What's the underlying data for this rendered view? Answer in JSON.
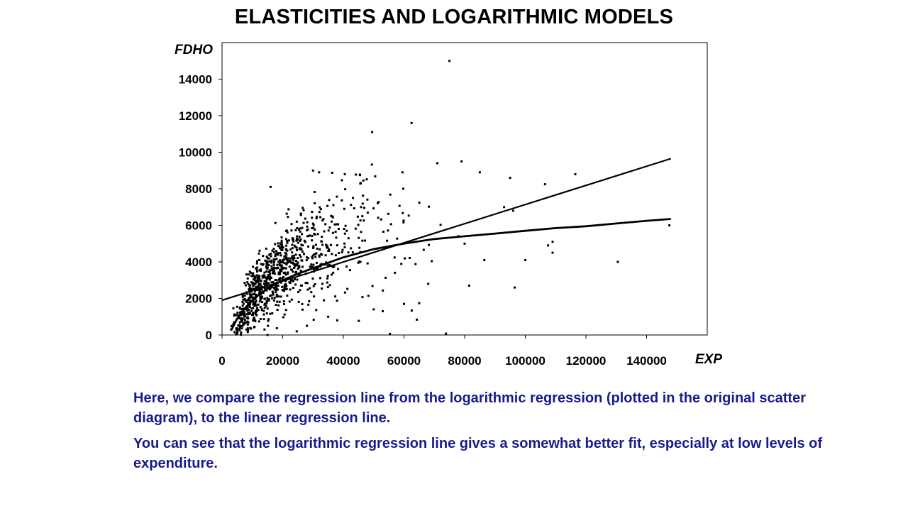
{
  "title": "ELASTICITIES AND LOGARITHMIC MODELS",
  "caption": {
    "paragraph_1": "Here, we compare the regression line from the logarithmic regression (plotted in the original scatter diagram), to the linear regression line.",
    "paragraph_2": "You can see that the logarithmic regression line gives a somewhat better fit, especially at low levels of expenditure."
  },
  "colors": {
    "title": "#000000",
    "caption": "#1a1a8c",
    "points": "#000000",
    "lines": "#000000"
  },
  "chart_data": {
    "type": "scatter",
    "xlabel": "EXP",
    "ylabel": "FDHO",
    "xlim": [
      0,
      160000
    ],
    "ylim": [
      0,
      16000
    ],
    "xticks": [
      "0",
      "20000",
      "40000",
      "60000",
      "80000",
      "100000",
      "120000",
      "140000"
    ],
    "yticks": [
      "0",
      "2000",
      "4000",
      "6000",
      "8000",
      "10000",
      "12000",
      "14000"
    ],
    "grid": false,
    "legend": "none",
    "highlighted_points": [
      {
        "x": 75000,
        "y": 15000
      },
      {
        "x": 62500,
        "y": 11600
      },
      {
        "x": 49500,
        "y": 11100
      },
      {
        "x": 71000,
        "y": 9400
      },
      {
        "x": 79000,
        "y": 9500
      },
      {
        "x": 85000,
        "y": 8900
      },
      {
        "x": 95000,
        "y": 8600
      },
      {
        "x": 106500,
        "y": 8250
      },
      {
        "x": 116500,
        "y": 8800
      },
      {
        "x": 93000,
        "y": 7000
      },
      {
        "x": 96000,
        "y": 6800
      },
      {
        "x": 30000,
        "y": 9000
      },
      {
        "x": 32000,
        "y": 8900
      },
      {
        "x": 40500,
        "y": 8800
      },
      {
        "x": 45500,
        "y": 8750
      },
      {
        "x": 59500,
        "y": 8900
      },
      {
        "x": 16000,
        "y": 8100
      },
      {
        "x": 147500,
        "y": 6000
      },
      {
        "x": 130500,
        "y": 4000
      },
      {
        "x": 100000,
        "y": 4100
      },
      {
        "x": 107500,
        "y": 4900
      },
      {
        "x": 109000,
        "y": 5100
      },
      {
        "x": 109000,
        "y": 4500
      },
      {
        "x": 96500,
        "y": 2600
      },
      {
        "x": 81500,
        "y": 2700
      },
      {
        "x": 86500,
        "y": 4100
      },
      {
        "x": 78000,
        "y": 5400
      },
      {
        "x": 80000,
        "y": 5000
      },
      {
        "x": 68000,
        "y": 2800
      },
      {
        "x": 60000,
        "y": 1700
      },
      {
        "x": 57000,
        "y": 3400
      },
      {
        "x": 50000,
        "y": 1400
      },
      {
        "x": 53000,
        "y": 1300
      },
      {
        "x": 38000,
        "y": 800
      },
      {
        "x": 35000,
        "y": 1000
      },
      {
        "x": 28000,
        "y": 500
      },
      {
        "x": 15000,
        "y": 0
      },
      {
        "x": 14000,
        "y": 300
      },
      {
        "x": 3000,
        "y": 300
      },
      {
        "x": 4000,
        "y": 700
      }
    ],
    "cluster": {
      "description_count": 900,
      "x_range": [
        3000,
        75000
      ],
      "x_mode": 15000
    },
    "series": [
      {
        "type": "line",
        "x": [
          0,
          148000
        ],
        "y": [
          1900,
          9650
        ]
      },
      {
        "type": "line",
        "x": [
          3000,
          5000,
          8000,
          12000,
          16000,
          20000,
          25000,
          30000,
          35000,
          40000,
          50000,
          60000,
          70000,
          80000,
          90000,
          100000,
          110000,
          120000,
          130000,
          140000,
          148000
        ],
        "y": [
          250,
          900,
          1550,
          2200,
          2650,
          3000,
          3350,
          3650,
          3950,
          4250,
          4700,
          5000,
          5250,
          5400,
          5550,
          5700,
          5850,
          5950,
          6100,
          6250,
          6350
        ]
      }
    ]
  }
}
